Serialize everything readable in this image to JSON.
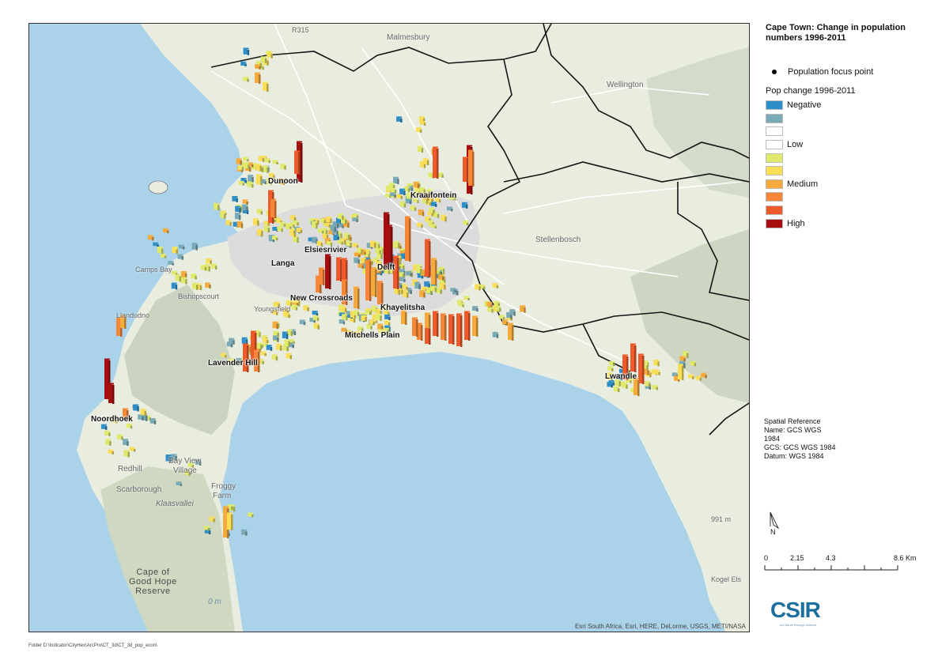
{
  "map": {
    "title": "Cape Town: Change in population numbers 1996-2011",
    "attribution": "Esri South Africa, Esri, HERE, DeLorme, USGS, METI/NASA",
    "place_labels": [
      {
        "name": "Dunoon"
      },
      {
        "name": "Kraaifontein"
      },
      {
        "name": "Elsiesrivier"
      },
      {
        "name": "Langa"
      },
      {
        "name": "Delft"
      },
      {
        "name": "New Crossroads"
      },
      {
        "name": "Khayelitsha"
      },
      {
        "name": "Mitchells Plain"
      },
      {
        "name": "Lavender Hill"
      },
      {
        "name": "Lwandle"
      },
      {
        "name": "Noordhoek"
      }
    ],
    "base_labels": [
      {
        "name": "Malmesbury"
      },
      {
        "name": "Wellington"
      },
      {
        "name": "Stellenbosch"
      },
      {
        "name": "Youngsfield"
      },
      {
        "name": "Bishopscourt"
      },
      {
        "name": "Redhill"
      },
      {
        "name": "Scarborough"
      },
      {
        "name": "Klaasvallei"
      },
      {
        "name": "Bay View"
      },
      {
        "name": "Village"
      },
      {
        "name": "Froggy"
      },
      {
        "name": "Farm"
      },
      {
        "name": "R315"
      },
      {
        "name": "991 m"
      },
      {
        "name": "Kogel Els"
      },
      {
        "name": "Llandudno"
      },
      {
        "name": "Camps Bay"
      }
    ],
    "reserve_label": [
      "Cape of",
      "Good Hope",
      "Reserve"
    ],
    "water_label": "0 m",
    "colors": {
      "ocean": "#aad3ea",
      "land": "#e8ecdf",
      "urban": "#d9d9d9",
      "mountain": "#c7d0bd",
      "boundary": "#111111",
      "road": "#ffffff"
    }
  },
  "legend": {
    "focus_point_label": "Population focus point",
    "heading": "Pop change 1996-2011",
    "classes": [
      {
        "label": "Negative",
        "color": "#2e8fc8"
      },
      {
        "label": "",
        "color": "#7aaab5"
      },
      {
        "label": "",
        "color": "#ffffff"
      },
      {
        "label": "Low",
        "color": "#ffffff"
      },
      {
        "label": "",
        "color": "#e1e96a"
      },
      {
        "label": "",
        "color": "#f9de58"
      },
      {
        "label": "Medium",
        "color": "#f5aa3e"
      },
      {
        "label": "",
        "color": "#f78738"
      },
      {
        "label": "",
        "color": "#ef5a2d"
      },
      {
        "label": "High",
        "color": "#a50f0f"
      }
    ]
  },
  "spatial_reference": {
    "heading": "Spatial Reference",
    "name_line1": "Name: GCS WGS",
    "name_line2": "1984",
    "gcs": "GCS: GCS WGS 1984",
    "datum": "Datum: WGS 1984"
  },
  "north_arrow_label": "N",
  "scale_bar": {
    "labels": [
      "0",
      "2.15",
      "4.3",
      "8.6 Km"
    ],
    "values_km": [
      0,
      2.15,
      4.3,
      8.6
    ]
  },
  "logo": {
    "text": "CSIR",
    "tagline": "our future through science",
    "color": "#1b6e9e"
  },
  "footer": "Folder D:\\Indicator\\CityHex\\ArcPro\\CT_3d\\CT_3d_pop_econ\\"
}
